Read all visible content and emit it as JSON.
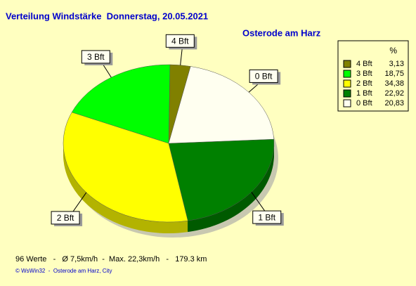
{
  "chart_data": {
    "type": "pie",
    "title": "Verteilung Windstärke  Donnerstag, 20.05.2021",
    "subtitle": "Osterode am Harz",
    "legend_header": "%",
    "categories": [
      "4 Bft",
      "3 Bft",
      "2 Bft",
      "1 Bft",
      "0 Bft"
    ],
    "values": [
      3.13,
      18.75,
      34.38,
      22.92,
      20.83
    ],
    "value_labels": [
      "3,13",
      "18,75",
      "34,38",
      "22,92",
      "20,83"
    ],
    "colors": [
      "#808000",
      "#00ff00",
      "#ffff00",
      "#008000",
      "#fffff0"
    ],
    "legend": "top-right",
    "footer": "96 Werte   -   Ø 7,5km/h  -  Max. 22,3km/h   -   179.3 km",
    "credit": "© WsWin32  -  Osterode am Harz, City"
  }
}
